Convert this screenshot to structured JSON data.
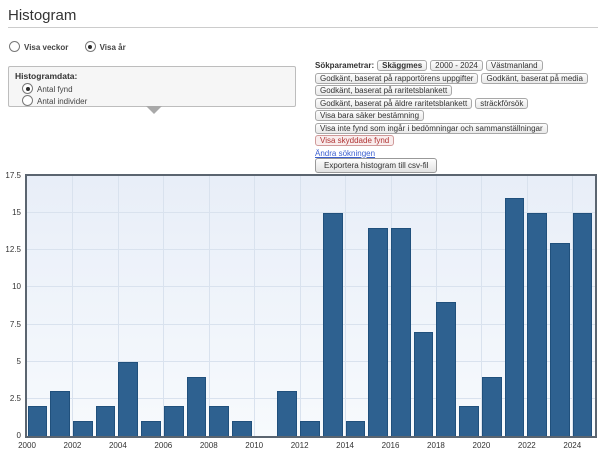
{
  "page": {
    "title": "Histogram"
  },
  "view_toggle": {
    "weeks": {
      "label": "Visa veckor",
      "selected": false
    },
    "years": {
      "label": "Visa år",
      "selected": true
    }
  },
  "histogram_data_box": {
    "legend": "Histogramdata:",
    "antal_fynd": {
      "label": "Antal fynd",
      "selected": true
    },
    "antal_individer": {
      "label": "Antal individer",
      "selected": false
    }
  },
  "search_params": {
    "label": "Sökparametrar:",
    "species_tag": "Skäggmes",
    "period_tag": "2000 - 2024",
    "region_tag": "Västmanland",
    "filter_rows": [
      [
        "Godkänt, baserat på rapportörens uppgifter",
        "Godkänt, baserat på media"
      ],
      [
        "Godkänt, baserat på raritetsblankett"
      ],
      [
        "Godkänt, baserat på äldre raritetsblankett",
        "sträckförsök"
      ],
      [
        "Visa bara säker bestämning"
      ],
      [
        "Visa inte fynd som ingår i bedömningar och sammanställningar"
      ]
    ],
    "protected_tag": "Visa skyddade fynd",
    "edit_link": "Ändra sökningen",
    "export_button": "Exportera histogram till csv-fil"
  },
  "chart_data": {
    "type": "bar",
    "title": "",
    "xlabel": "",
    "ylabel": "",
    "categories": [
      "2000",
      "2001",
      "2002",
      "2003",
      "2004",
      "2005",
      "2006",
      "2007",
      "2008",
      "2009",
      "2010",
      "2011",
      "2012",
      "2013",
      "2014",
      "2015",
      "2016",
      "2017",
      "2018",
      "2019",
      "2020",
      "2021",
      "2022",
      "2023",
      "2024"
    ],
    "values": [
      2,
      3,
      1,
      2,
      5,
      1,
      2,
      4,
      2,
      1,
      0,
      3,
      1,
      15,
      1,
      14,
      14,
      7,
      9,
      2,
      4,
      16,
      15,
      13,
      15
    ],
    "ylim": [
      0,
      17.5
    ],
    "y_ticks": [
      0,
      2.5,
      5,
      7.5,
      10,
      12.5,
      15,
      17.5
    ],
    "x_tick_years": [
      "2000",
      "2002",
      "2004",
      "2006",
      "2008",
      "2010",
      "2012",
      "2014",
      "2016",
      "2018",
      "2020",
      "2022",
      "2024"
    ],
    "grid": "on",
    "legend": "off",
    "bar_color": "#2e6190",
    "bar_border_color": "#20507c",
    "grid_color": "#d9e2ee",
    "plot_border_color": "#5b6570",
    "plot_bg_top": "#e8eef8",
    "plot_bg_bottom": "#f7fafd"
  }
}
